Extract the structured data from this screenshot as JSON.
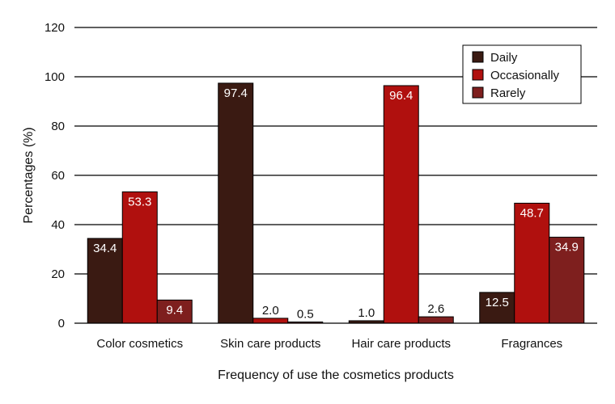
{
  "chart_data": {
    "type": "bar",
    "title": "",
    "xlabel": "Frequency of use the cosmetics products",
    "ylabel": "Percentages (%)",
    "ylim": [
      0,
      120
    ],
    "yticks": [
      "0",
      "20",
      "40",
      "60",
      "80",
      "100",
      "120"
    ],
    "grid": true,
    "legend_position": "top-right",
    "categories": [
      "Color cosmetics",
      "Skin care products",
      "Hair care products",
      "Fragrances"
    ],
    "series": [
      {
        "name": "Daily",
        "color": "#3a1a12",
        "values": [
          34.4,
          97.4,
          1.0,
          12.5
        ],
        "labels": [
          "34.4",
          "97.4",
          "1.0",
          "12.5"
        ]
      },
      {
        "name": "Occasionally",
        "color": "#b0100e",
        "values": [
          53.3,
          2.0,
          96.4,
          48.7
        ],
        "labels": [
          "53.3",
          "2.0",
          "96.4",
          "48.7"
        ]
      },
      {
        "name": "Rarely",
        "color": "#7e1f1e",
        "values": [
          9.4,
          0.5,
          2.6,
          34.9
        ],
        "labels": [
          "9.4",
          "0.5",
          "2.6",
          "34.9"
        ]
      }
    ]
  }
}
